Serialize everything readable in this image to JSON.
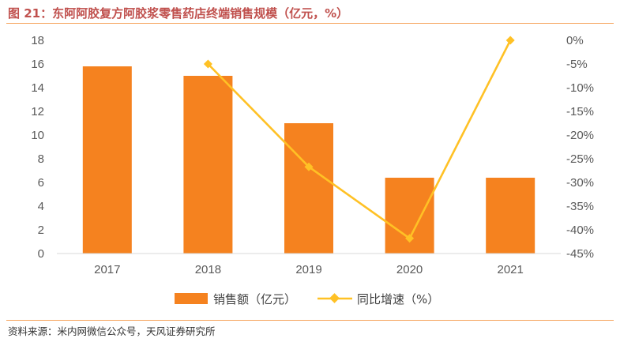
{
  "figure": {
    "title": "图 21：东阿阿胶复方阿胶浆零售药店终端销售规模（亿元，%）",
    "source": "资料来源：米内网微信公众号，天风证券研究所"
  },
  "chart_data": {
    "type": "bar",
    "categories": [
      "2017",
      "2018",
      "2019",
      "2020",
      "2021"
    ],
    "series": [
      {
        "name": "销售额（亿元）",
        "type": "bar",
        "axis": "left",
        "values": [
          15.8,
          15.0,
          11.0,
          6.4,
          6.4
        ],
        "color": "#f5821f"
      },
      {
        "name": "同比增速（%）",
        "type": "line",
        "axis": "right",
        "values": [
          null,
          -5.0,
          -26.7,
          -41.8,
          0.0
        ],
        "color": "#ffc125"
      }
    ],
    "y_left": {
      "min": 0,
      "max": 18,
      "step": 2,
      "ticks": [
        "0",
        "2",
        "4",
        "6",
        "8",
        "10",
        "12",
        "14",
        "16",
        "18"
      ]
    },
    "y_right": {
      "min": -45,
      "max": 0,
      "step": 5,
      "ticks": [
        "-45%",
        "-40%",
        "-35%",
        "-30%",
        "-25%",
        "-20%",
        "-15%",
        "-10%",
        "-5%",
        "0%"
      ]
    },
    "grid": false,
    "legend_position": "bottom",
    "axis_color": "#d9d9d9",
    "tick_color": "#595959"
  }
}
